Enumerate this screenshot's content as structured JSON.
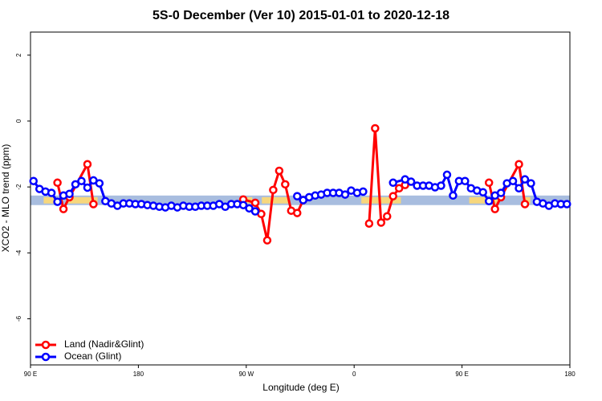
{
  "chart_data": {
    "type": "line",
    "title": "5S-0 December (Ver 10)   2015-01-01 to 2020-12-18",
    "x_label": "Longitude (deg E)",
    "y_label": "XCO2 - MLO trend (ppm)",
    "xlim": [
      90,
      540
    ],
    "xticks": [
      {
        "value": 90,
        "label": "90 E"
      },
      180,
      {
        "value": 270,
        "label": "90 W"
      },
      {
        "value": 360,
        "label": "0"
      },
      {
        "value": 450,
        "label": "90 E"
      },
      {
        "value": 540,
        "label": "180"
      }
    ],
    "ylim": [
      -7.4,
      2.7
    ],
    "yticks": [
      2,
      0,
      -2,
      -4,
      -6
    ],
    "band": [
      -2.55,
      -2.26
    ],
    "band_color": "#a8bddf",
    "land_spans": [
      [
        101,
        110
      ],
      [
        121,
        146
      ],
      [
        265,
        275
      ],
      [
        283,
        305
      ],
      [
        366,
        399
      ],
      [
        456,
        481
      ],
      [
        502,
        507
      ]
    ],
    "land_color": "#f7d77c",
    "legend": "bottomleft",
    "series": [
      {
        "name": "Land (Nadir&Glint)",
        "color": "#ff0000",
        "x": [
          112.5,
          117.5,
          122.5,
          137.5,
          142.5,
          200,
          267.5,
          277.5,
          282.5,
          287.5,
          292.5,
          297.5,
          302.5,
          307.5,
          312.5,
          317.5,
          340,
          372.5,
          377.5,
          382.5,
          387.5,
          392.5,
          397.5,
          402.5,
          430,
          472.5,
          477.5,
          482.5,
          497.5,
          502.5
        ],
        "values": [
          -1.87,
          -2.67,
          -2.31,
          -1.31,
          -2.52,
          null,
          -2.38,
          -2.48,
          -2.82,
          -3.62,
          -2.09,
          -1.51,
          -1.92,
          -2.72,
          -2.79,
          -2.4,
          null,
          -3.11,
          -0.22,
          -3.08,
          -2.89,
          -2.28,
          -2.04,
          -1.94,
          null,
          -1.87,
          -2.67,
          -2.31,
          -1.31,
          -2.52
        ]
      },
      {
        "name": "Ocean (Glint)",
        "color": "#0000ff",
        "x": [
          92.5,
          97.5,
          102.5,
          107.5,
          112.5,
          117.5,
          122.5,
          127.5,
          132.5,
          137.5,
          142.5,
          147.5,
          152.5,
          157.5,
          162.5,
          167.5,
          172.5,
          177.5,
          182.5,
          187.5,
          192.5,
          197.5,
          202.5,
          207.5,
          212.5,
          217.5,
          222.5,
          227.5,
          232.5,
          237.5,
          242.5,
          247.5,
          252.5,
          257.5,
          262.5,
          267.5,
          272.5,
          277.5,
          295,
          312.5,
          317.5,
          322.5,
          327.5,
          332.5,
          337.5,
          342.5,
          347.5,
          352.5,
          357.5,
          362.5,
          367.5,
          380,
          392.5,
          402.5,
          407.5,
          412.5,
          417.5,
          422.5,
          427.5,
          432.5,
          437.5,
          442.5,
          447.5,
          452.5,
          457.5,
          462.5,
          467.5,
          472.5,
          477.5,
          482.5,
          487.5,
          492.5,
          497.5,
          502.5,
          507.5,
          512.5,
          517.5,
          522.5,
          527.5,
          532.5,
          537.5
        ],
        "values": [
          -1.82,
          -2.06,
          -2.14,
          -2.18,
          -2.45,
          -2.26,
          -2.21,
          -1.92,
          -1.82,
          -2.02,
          -1.8,
          -1.89,
          -2.43,
          -2.5,
          -2.57,
          -2.5,
          -2.5,
          -2.52,
          -2.52,
          -2.55,
          -2.57,
          -2.6,
          -2.62,
          -2.57,
          -2.62,
          -2.57,
          -2.6,
          -2.6,
          -2.57,
          -2.57,
          -2.57,
          -2.52,
          -2.6,
          -2.52,
          -2.52,
          -2.55,
          -2.65,
          -2.74,
          null,
          -2.28,
          -2.4,
          -2.31,
          -2.26,
          -2.23,
          -2.18,
          -2.18,
          -2.18,
          -2.23,
          -2.11,
          -2.18,
          -2.14,
          null,
          -1.87,
          -1.77,
          -1.84,
          -1.96,
          -1.96,
          -1.96,
          -2.01,
          -1.96,
          -1.63,
          -2.26,
          -1.82,
          -1.82,
          -2.04,
          -2.11,
          -2.16,
          -2.43,
          -2.26,
          -2.18,
          -1.89,
          -1.82,
          -2.04,
          -1.77,
          -1.89,
          -2.45,
          -2.5,
          -2.57,
          -2.5,
          -2.52,
          -2.52
        ]
      }
    ]
  }
}
